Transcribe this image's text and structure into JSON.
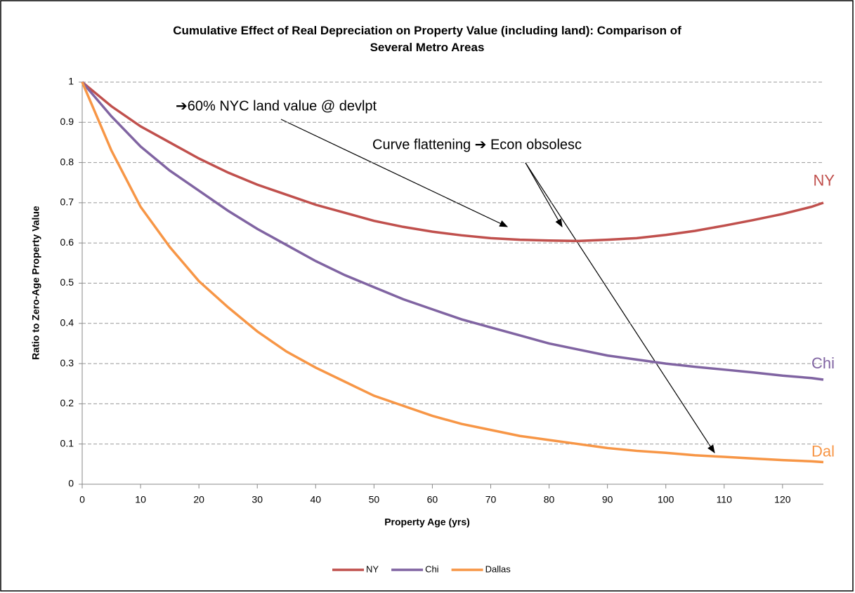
{
  "chart_data": {
    "type": "line",
    "title": "Cumulative Effect of Real Depreciation on Property Value (including land): Comparison of Several Metro Areas",
    "x_label": "Property Age (yrs)",
    "y_label": "Ratio to Zero-Age Property Value",
    "x": [
      0,
      5,
      10,
      15,
      20,
      25,
      30,
      35,
      40,
      45,
      50,
      55,
      60,
      65,
      70,
      75,
      80,
      85,
      90,
      95,
      100,
      105,
      110,
      115,
      120,
      125,
      127
    ],
    "series": [
      {
        "name": "NY",
        "color": "#c0504d",
        "end_label": "NY",
        "values": [
          1,
          0.94,
          0.89,
          0.85,
          0.81,
          0.775,
          0.745,
          0.72,
          0.695,
          0.675,
          0.655,
          0.64,
          0.628,
          0.619,
          0.612,
          0.608,
          0.606,
          0.605,
          0.608,
          0.612,
          0.62,
          0.63,
          0.643,
          0.657,
          0.672,
          0.69,
          0.7
        ]
      },
      {
        "name": "Chi",
        "color": "#8064a2",
        "end_label": "Chi",
        "values": [
          1,
          0.915,
          0.84,
          0.78,
          0.73,
          0.68,
          0.635,
          0.595,
          0.555,
          0.52,
          0.49,
          0.46,
          0.435,
          0.41,
          0.39,
          0.37,
          0.35,
          0.335,
          0.32,
          0.31,
          0.3,
          0.292,
          0.285,
          0.278,
          0.27,
          0.264,
          0.26
        ]
      },
      {
        "name": "Dallas",
        "color": "#f79646",
        "end_label": "Dal",
        "values": [
          1,
          0.83,
          0.69,
          0.59,
          0.505,
          0.44,
          0.38,
          0.33,
          0.29,
          0.255,
          0.22,
          0.195,
          0.17,
          0.15,
          0.135,
          0.12,
          0.11,
          0.1,
          0.09,
          0.083,
          0.078,
          0.072,
          0.068,
          0.064,
          0.06,
          0.057,
          0.055
        ]
      }
    ],
    "annotations": [
      "➔60% NYC land value @ devlpt",
      "Curve flattening ➔ Econ obsolesc"
    ],
    "xlim": [
      0,
      127
    ],
    "xticks": [
      0,
      10,
      20,
      30,
      40,
      50,
      60,
      70,
      80,
      90,
      100,
      110,
      120
    ],
    "ylim": [
      0,
      1
    ],
    "yticks": [
      0,
      0.1,
      0.2,
      0.3,
      0.4,
      0.5,
      0.6,
      0.7,
      0.8,
      0.9,
      1
    ],
    "grid": true,
    "legend": "bottom"
  }
}
